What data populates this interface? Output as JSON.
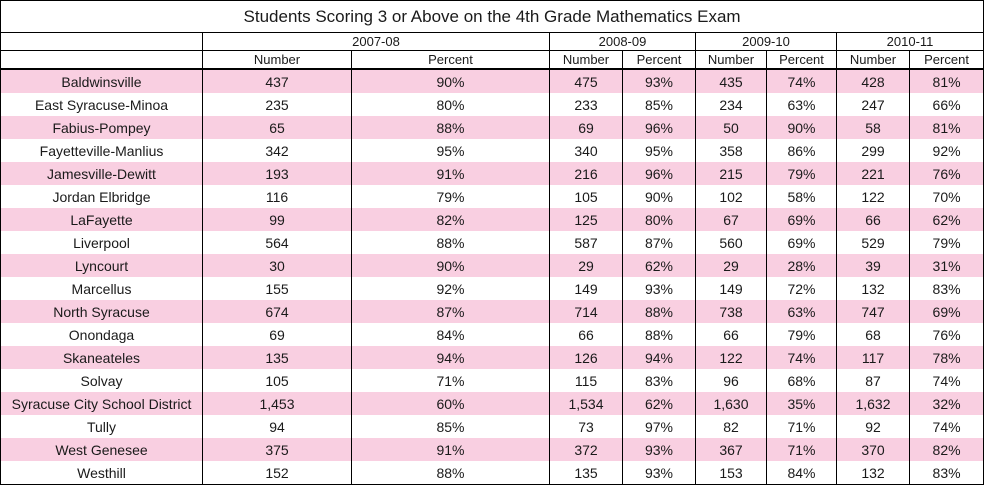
{
  "chart_data": {
    "type": "table",
    "title": "Students Scoring 3 or Above on the 4th Grade Mathematics Exam",
    "years": [
      "2007-08",
      "2008-09",
      "2009-10",
      "2010-11"
    ],
    "subheaders": [
      "Number",
      "Percent"
    ],
    "rows": [
      {
        "district": "Baldwinsville",
        "values": [
          "437",
          "90%",
          "475",
          "93%",
          "435",
          "74%",
          "428",
          "81%"
        ]
      },
      {
        "district": "East Syracuse-Minoa",
        "values": [
          "235",
          "80%",
          "233",
          "85%",
          "234",
          "63%",
          "247",
          "66%"
        ]
      },
      {
        "district": "Fabius-Pompey",
        "values": [
          "65",
          "88%",
          "69",
          "96%",
          "50",
          "90%",
          "58",
          "81%"
        ]
      },
      {
        "district": "Fayetteville-Manlius",
        "values": [
          "342",
          "95%",
          "340",
          "95%",
          "358",
          "86%",
          "299",
          "92%"
        ]
      },
      {
        "district": "Jamesville-Dewitt",
        "values": [
          "193",
          "91%",
          "216",
          "96%",
          "215",
          "79%",
          "221",
          "76%"
        ]
      },
      {
        "district": "Jordan Elbridge",
        "values": [
          "116",
          "79%",
          "105",
          "90%",
          "102",
          "58%",
          "122",
          "70%"
        ]
      },
      {
        "district": "LaFayette",
        "values": [
          "99",
          "82%",
          "125",
          "80%",
          "67",
          "69%",
          "66",
          "62%"
        ]
      },
      {
        "district": "Liverpool",
        "values": [
          "564",
          "88%",
          "587",
          "87%",
          "560",
          "69%",
          "529",
          "79%"
        ]
      },
      {
        "district": "Lyncourt",
        "values": [
          "30",
          "90%",
          "29",
          "62%",
          "29",
          "28%",
          "39",
          "31%"
        ]
      },
      {
        "district": "Marcellus",
        "values": [
          "155",
          "92%",
          "149",
          "93%",
          "149",
          "72%",
          "132",
          "83%"
        ]
      },
      {
        "district": "North Syracuse",
        "values": [
          "674",
          "87%",
          "714",
          "88%",
          "738",
          "63%",
          "747",
          "69%"
        ]
      },
      {
        "district": "Onondaga",
        "values": [
          "69",
          "84%",
          "66",
          "88%",
          "66",
          "79%",
          "68",
          "76%"
        ]
      },
      {
        "district": "Skaneateles",
        "values": [
          "135",
          "94%",
          "126",
          "94%",
          "122",
          "74%",
          "117",
          "78%"
        ]
      },
      {
        "district": "Solvay",
        "values": [
          "105",
          "71%",
          "115",
          "83%",
          "96",
          "68%",
          "87",
          "74%"
        ]
      },
      {
        "district": "Syracuse City School District",
        "values": [
          "1,453",
          "60%",
          "1,534",
          "62%",
          "1,630",
          "35%",
          "1,632",
          "32%"
        ]
      },
      {
        "district": "Tully",
        "values": [
          "94",
          "85%",
          "73",
          "97%",
          "82",
          "71%",
          "92",
          "74%"
        ]
      },
      {
        "district": "West Genesee",
        "values": [
          "375",
          "91%",
          "372",
          "93%",
          "367",
          "71%",
          "370",
          "82%"
        ]
      },
      {
        "district": "Westhill",
        "values": [
          "152",
          "88%",
          "135",
          "93%",
          "153",
          "84%",
          "132",
          "83%"
        ]
      }
    ]
  },
  "colors": {
    "row_highlight": "#f9cfe1",
    "border": "#000000"
  }
}
